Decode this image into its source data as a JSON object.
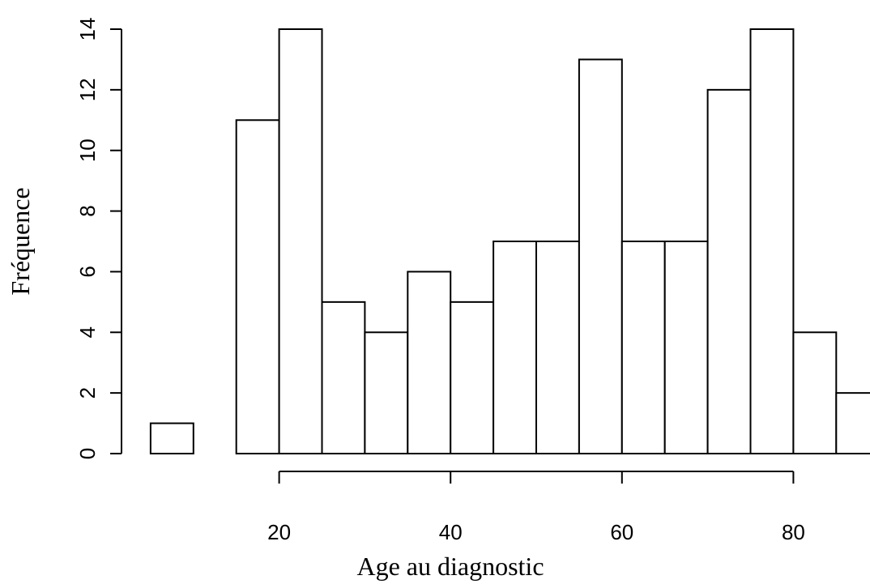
{
  "chart_data": {
    "type": "bar",
    "histogram": true,
    "bin_width": 5,
    "bin_starts": [
      5,
      10,
      15,
      20,
      25,
      30,
      35,
      40,
      45,
      50,
      55,
      60,
      65,
      70,
      75,
      80,
      85
    ],
    "values": [
      1,
      0,
      11,
      14,
      5,
      4,
      6,
      5,
      7,
      7,
      13,
      7,
      7,
      12,
      14,
      4,
      2
    ],
    "title": "",
    "xlabel": "Age au diagnostic",
    "ylabel": "Fréquence",
    "x_ticks": [
      "20",
      "40",
      "60",
      "80"
    ],
    "y_ticks": [
      "0",
      "2",
      "4",
      "6",
      "8",
      "10",
      "12",
      "14"
    ],
    "xlim": [
      5,
      90
    ],
    "ylim": [
      0,
      14
    ],
    "grid": false,
    "colors": {
      "bar_fill": "#ffffff",
      "bar_stroke": "#000000"
    }
  }
}
